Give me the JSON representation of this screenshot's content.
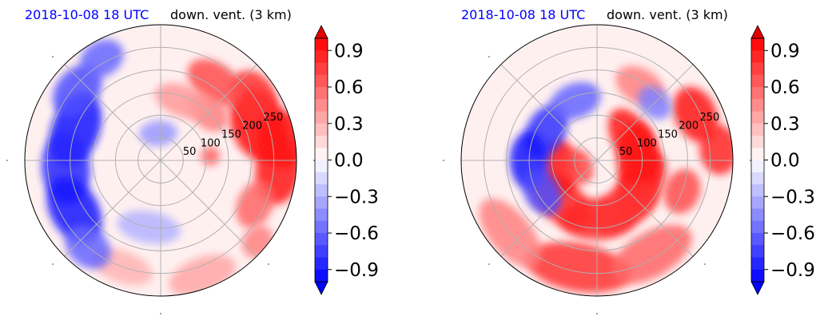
{
  "chart_data": [
    {
      "type": "heatmap",
      "projection": "polar",
      "title_left": "2018-10-08 18 UTC",
      "title_right": "down. vent. (3 km)",
      "radial_ticks": [
        "50",
        "100",
        "150",
        "200",
        "250"
      ],
      "colorbar": {
        "vmin": -1.0,
        "vmax": 1.0,
        "extend": "both",
        "ticks": [
          "0.9",
          "0.6",
          "0.3",
          "0.0",
          "−0.3",
          "−0.6",
          "−0.9"
        ],
        "tick_values": [
          0.9,
          0.6,
          0.3,
          0.0,
          -0.3,
          -0.6,
          -0.9
        ]
      },
      "colors": {
        "positive": "#ff0000",
        "negative": "#0000ff",
        "neutral": "#ffffff",
        "title_left": "#0000ff"
      },
      "blobs": [
        {
          "angle": 20,
          "radius": 230,
          "value": 0.95,
          "size": 34,
          "stretch": 1.4
        },
        {
          "angle": 10,
          "radius": 270,
          "value": 0.9,
          "size": 30,
          "stretch": 1.2
        },
        {
          "angle": -5,
          "radius": 260,
          "value": 0.9,
          "size": 28,
          "stretch": 1.5
        },
        {
          "angle": 35,
          "radius": 250,
          "value": 0.8,
          "size": 26,
          "stretch": 1.3
        },
        {
          "angle": 55,
          "radius": 210,
          "value": 0.7,
          "size": 24,
          "stretch": 1.6
        },
        {
          "angle": 45,
          "radius": 150,
          "value": 0.5,
          "size": 20,
          "stretch": 1.4
        },
        {
          "angle": 70,
          "radius": 140,
          "value": 0.4,
          "size": 20,
          "stretch": 1.8
        },
        {
          "angle": -25,
          "radius": 230,
          "value": 0.6,
          "size": 22,
          "stretch": 1.4
        },
        {
          "angle": -40,
          "radius": 280,
          "value": 0.5,
          "size": 18,
          "stretch": 1.2
        },
        {
          "angle": 5,
          "radius": 110,
          "value": 0.6,
          "size": 12,
          "stretch": 1.0
        },
        {
          "angle": -70,
          "radius": 270,
          "value": 0.35,
          "size": 22,
          "stretch": 2.0
        },
        {
          "angle": -110,
          "radius": 250,
          "value": 0.3,
          "size": 20,
          "stretch": 2.0
        },
        {
          "angle": 160,
          "radius": 200,
          "value": -0.9,
          "size": 30,
          "stretch": 1.6
        },
        {
          "angle": 185,
          "radius": 210,
          "value": -0.85,
          "size": 30,
          "stretch": 1.5
        },
        {
          "angle": 210,
          "radius": 220,
          "value": -0.9,
          "size": 30,
          "stretch": 1.5
        },
        {
          "angle": 140,
          "radius": 240,
          "value": -0.7,
          "size": 26,
          "stretch": 1.4
        },
        {
          "angle": 120,
          "radius": 260,
          "value": -0.6,
          "size": 22,
          "stretch": 1.3
        },
        {
          "angle": 230,
          "radius": 250,
          "value": -0.6,
          "size": 24,
          "stretch": 1.3
        },
        {
          "angle": 95,
          "radius": 60,
          "value": -0.4,
          "size": 16,
          "stretch": 1.5
        },
        {
          "angle": 260,
          "radius": 150,
          "value": -0.3,
          "size": 20,
          "stretch": 2.0
        }
      ]
    },
    {
      "type": "heatmap",
      "projection": "polar",
      "title_left": "2018-10-08 18 UTC",
      "title_right": "down. vent. (3 km)",
      "radial_ticks": [
        "50",
        "100",
        "150",
        "200",
        "250"
      ],
      "colorbar": {
        "vmin": -1.0,
        "vmax": 1.0,
        "extend": "both",
        "ticks": [
          "0.9",
          "0.6",
          "0.3",
          "0.0",
          "−0.3",
          "−0.6",
          "−0.9"
        ],
        "tick_values": [
          0.9,
          0.6,
          0.3,
          0.0,
          -0.3,
          -0.6,
          -0.9
        ]
      },
      "colors": {
        "positive": "#ff0000",
        "negative": "#0000ff",
        "neutral": "#ffffff",
        "title_left": "#0000ff"
      },
      "blobs": [
        {
          "angle": 0,
          "radius": 90,
          "value": 0.95,
          "size": 26,
          "stretch": 1.8
        },
        {
          "angle": 30,
          "radius": 90,
          "value": 0.9,
          "size": 24,
          "stretch": 1.8
        },
        {
          "angle": -30,
          "radius": 110,
          "value": 0.9,
          "size": 26,
          "stretch": 1.8
        },
        {
          "angle": -60,
          "radius": 120,
          "value": 0.8,
          "size": 26,
          "stretch": 1.8
        },
        {
          "angle": -90,
          "radius": 130,
          "value": 0.8,
          "size": 26,
          "stretch": 1.8
        },
        {
          "angle": -130,
          "radius": 120,
          "value": 0.85,
          "size": 26,
          "stretch": 1.8
        },
        {
          "angle": -170,
          "radius": 80,
          "value": 0.9,
          "size": 22,
          "stretch": 1.6
        },
        {
          "angle": 200,
          "radius": 40,
          "value": 0.7,
          "size": 16,
          "stretch": 1.4
        },
        {
          "angle": -100,
          "radius": 240,
          "value": 0.8,
          "size": 30,
          "stretch": 2.2
        },
        {
          "angle": -60,
          "radius": 240,
          "value": 0.6,
          "size": 28,
          "stretch": 2.0
        },
        {
          "angle": -140,
          "radius": 250,
          "value": 0.5,
          "size": 26,
          "stretch": 2.0
        },
        {
          "angle": 25,
          "radius": 240,
          "value": 0.9,
          "size": 26,
          "stretch": 1.4
        },
        {
          "angle": 5,
          "radius": 270,
          "value": 0.85,
          "size": 24,
          "stretch": 1.3
        },
        {
          "angle": -20,
          "radius": 200,
          "value": 0.7,
          "size": 22,
          "stretch": 1.3
        },
        {
          "angle": 60,
          "radius": 190,
          "value": 0.5,
          "size": 22,
          "stretch": 1.5
        },
        {
          "angle": 150,
          "radius": 130,
          "value": -0.8,
          "size": 24,
          "stretch": 1.5
        },
        {
          "angle": 180,
          "radius": 150,
          "value": -0.9,
          "size": 24,
          "stretch": 1.5
        },
        {
          "angle": 210,
          "radius": 140,
          "value": -0.7,
          "size": 22,
          "stretch": 1.4
        },
        {
          "angle": 110,
          "radius": 140,
          "value": -0.6,
          "size": 22,
          "stretch": 1.5
        },
        {
          "angle": 45,
          "radius": 180,
          "value": -0.5,
          "size": 18,
          "stretch": 1.3
        }
      ]
    }
  ]
}
